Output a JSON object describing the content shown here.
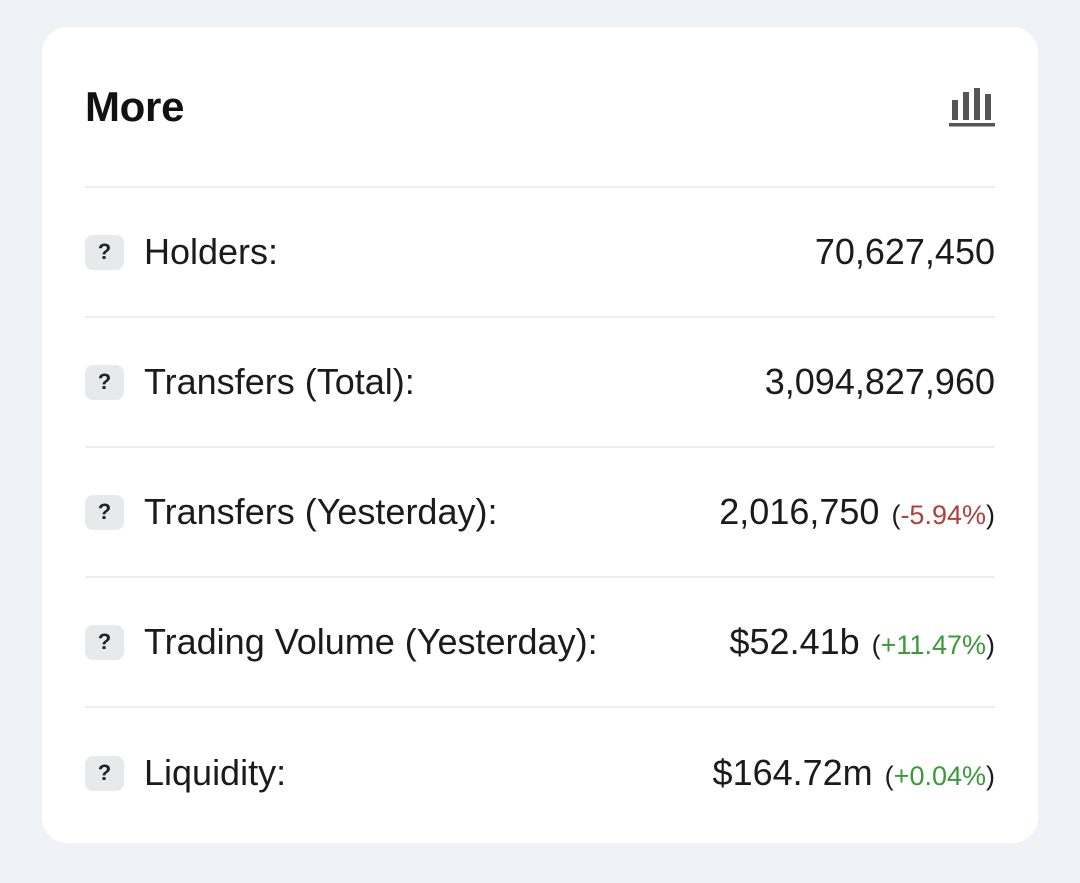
{
  "card": {
    "title": "More",
    "chart_icon": "bar-chart-icon"
  },
  "help_icon_glyph": "?",
  "rows": [
    {
      "label": "Holders:",
      "value": "70,627,450",
      "change": null
    },
    {
      "label": "Transfers (Total):",
      "value": "3,094,827,960",
      "change": null
    },
    {
      "label": "Transfers (Yesterday):",
      "value": "2,016,750",
      "change": "-5.94%",
      "direction": "negative"
    },
    {
      "label": "Trading Volume (Yesterday):",
      "value": "$52.41b",
      "change": "+11.47%",
      "direction": "positive"
    },
    {
      "label": "Liquidity:",
      "value": "$164.72m",
      "change": "+0.04%",
      "direction": "positive"
    }
  ],
  "colors": {
    "negative": "#b0403c",
    "positive": "#3a9a3a"
  }
}
